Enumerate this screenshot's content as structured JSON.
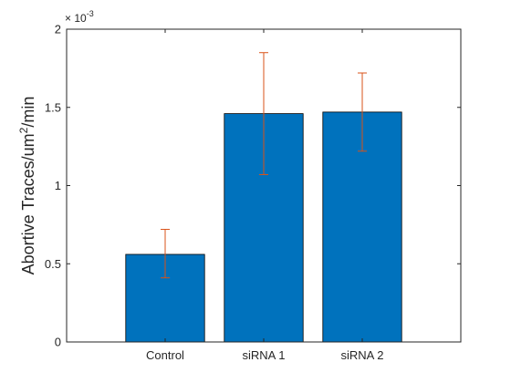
{
  "chart_data": {
    "type": "bar",
    "categories": [
      "Control",
      "siRNA 1",
      "siRNA 2"
    ],
    "values": [
      0.00056,
      0.00146,
      0.00147
    ],
    "error_high": [
      0.00072,
      0.00185,
      0.00172
    ],
    "error_low": [
      0.00041,
      0.00107,
      0.00122
    ],
    "ylim": [
      0,
      0.002
    ],
    "xlim": [
      0,
      4
    ],
    "yticks": [
      0,
      0.0005,
      0.001,
      0.0015,
      0.002
    ],
    "ytick_labels": [
      "0",
      "0.5",
      "1",
      "1.5",
      "2"
    ],
    "exponent_base": "× 10",
    "exponent_power": "-3",
    "ylabel_prefix": "Abortive Traces/um",
    "ylabel_sup": "2",
    "ylabel_suffix": "/min",
    "xlabel": "",
    "grid": false,
    "bar_color": "#0072BD",
    "error_color": "#D95319",
    "axis_color": "#262626"
  }
}
